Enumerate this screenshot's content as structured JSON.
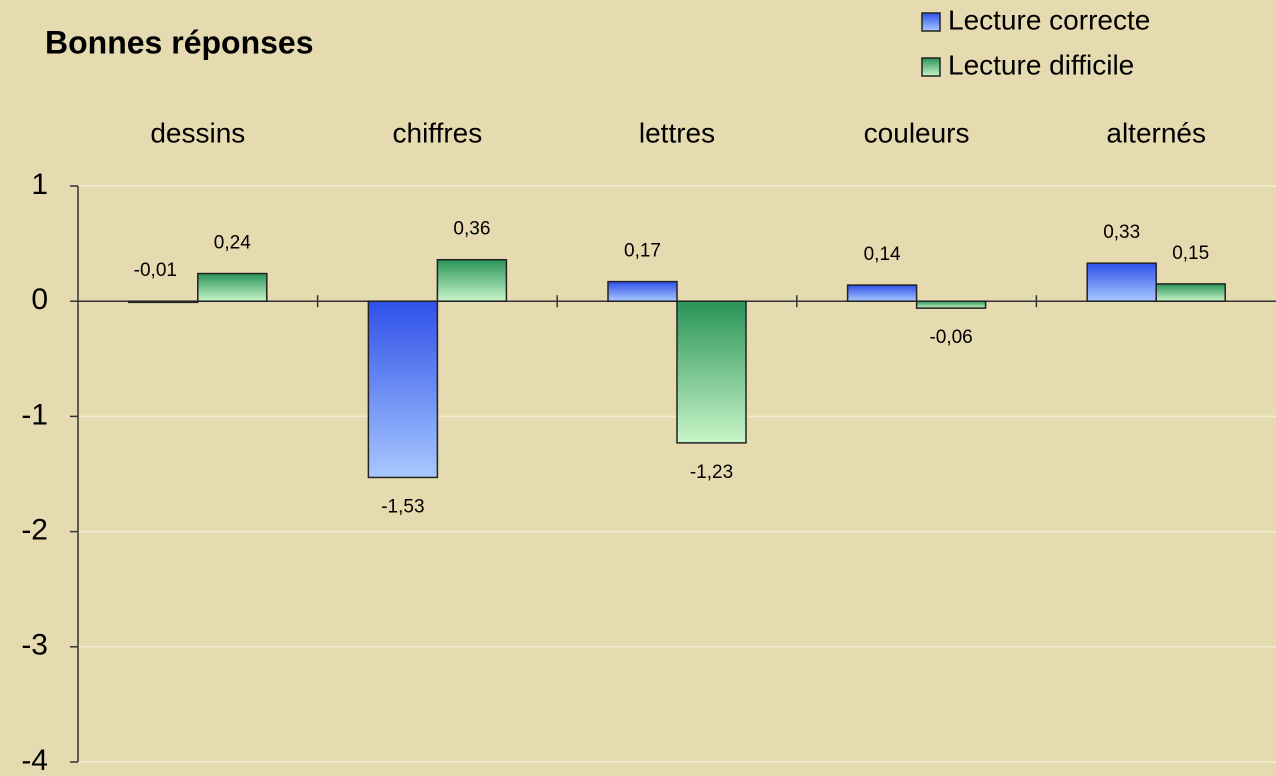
{
  "chart_data": {
    "type": "bar",
    "title": "Bonnes réponses",
    "categories": [
      "dessins",
      "chiffres",
      "lettres",
      "couleurs",
      "alternés"
    ],
    "series": [
      {
        "name": "Lecture correcte",
        "color": "#3a5ef0",
        "values": [
          -0.01,
          -1.53,
          0.17,
          0.14,
          0.33
        ],
        "value_labels": [
          "-0,01",
          "-1,53",
          "0,17",
          "0,14",
          "0,33"
        ]
      },
      {
        "name": "Lecture difficile",
        "color": "#2e9a5e",
        "values": [
          0.24,
          0.36,
          -1.23,
          -0.06,
          0.15
        ],
        "value_labels": [
          "0,24",
          "0,36",
          "-1,23",
          "-0,06",
          "0,15"
        ]
      }
    ],
    "ylim": [
      -4,
      1
    ],
    "yticks": [
      -4,
      -3,
      -2,
      -1,
      0,
      1
    ],
    "grid": true,
    "legend": "top-right"
  }
}
